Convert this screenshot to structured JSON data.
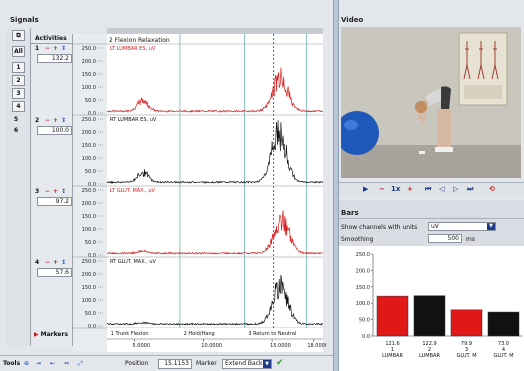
{
  "signals": {
    "title": "Signals",
    "sidebar": {
      "all_label": "All",
      "buttons": [
        "1",
        "2",
        "3",
        "4"
      ],
      "extra": [
        "5",
        "6"
      ]
    },
    "activities_label": "Activities",
    "top_phase_label": "2 Flexion Relaxation",
    "markers_label": "Markers",
    "channels": [
      {
        "num": "1",
        "value": "132.2",
        "name": "LT LUMBAR ES, uV",
        "color": "#d62020"
      },
      {
        "num": "2",
        "value": "100.0",
        "name": "RT LUMBAR ES, uV",
        "color": "#111111"
      },
      {
        "num": "3",
        "value": "97.2",
        "name": "LT GLUT. MAX., uV",
        "color": "#d62020"
      },
      {
        "num": "4",
        "value": "57.6",
        "name": "RT GLUT. MAX., uV",
        "color": "#111111"
      }
    ],
    "y_ticks": [
      "250.0",
      "200.0",
      "150.0",
      "100.0",
      "50.0",
      "0.0"
    ],
    "x_ticks": [
      "5.0000",
      "10.0000",
      "15.0000",
      "18.0000 s"
    ],
    "phase_labels": [
      "1 Trunk Flexion",
      "2 Hold/Hang",
      "3 Return to Neutral"
    ]
  },
  "toolbar": {
    "tools_label": "Tools",
    "position_label": "Position",
    "position_value": "15.1153",
    "marker_label": "Marker",
    "marker_mode": "Extend Backw"
  },
  "video": {
    "title": "Video",
    "speed": "1x"
  },
  "bars": {
    "title": "Bars",
    "units_label": "Show channels with units",
    "units_value": "uV",
    "smoothing_label": "Smoothing",
    "smoothing_value": "500",
    "smoothing_unit": "ms",
    "y_ticks": [
      "250.0",
      "200.0",
      "150.0",
      "100.0",
      "50.0",
      "0.0"
    ],
    "items": [
      {
        "value": "121.6",
        "index": "1",
        "label": "LUMBAR",
        "color": "#e01818"
      },
      {
        "value": "122.9",
        "index": "2",
        "label": "LUMBAR",
        "color": "#111111"
      },
      {
        "value": "79.9",
        "index": "3",
        "label": "GLUT. M",
        "color": "#e01818"
      },
      {
        "value": "73.0",
        "index": "4",
        "label": "GLUT. M",
        "color": "#111111"
      }
    ]
  }
}
